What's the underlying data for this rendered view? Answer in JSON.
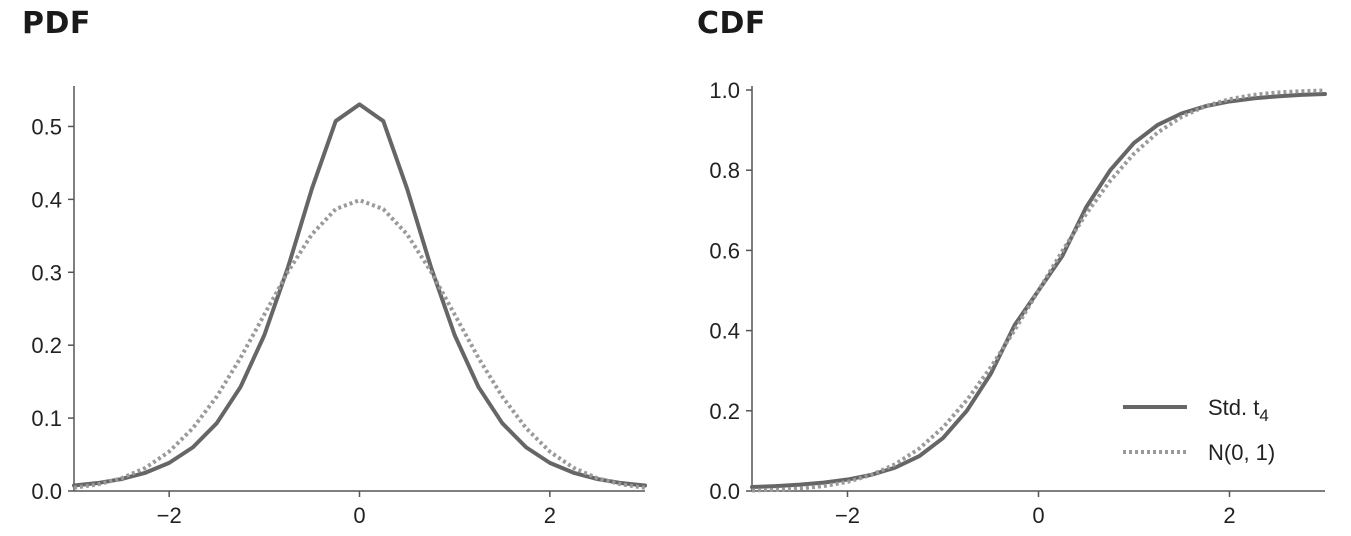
{
  "colors": {
    "line": "#666666",
    "dotted": "#9a9a9a",
    "axis": "#555555",
    "text": "#222222"
  },
  "chart_data": [
    {
      "type": "line",
      "title": "PDF",
      "xlabel": "",
      "ylabel": "",
      "xlim": [
        -3,
        3
      ],
      "ylim": [
        0,
        0.55
      ],
      "xticks": [
        -2,
        0,
        2
      ],
      "xtick_labels": [
        "−2",
        "0",
        "2"
      ],
      "yticks": [
        0.0,
        0.1,
        0.2,
        0.3,
        0.4,
        0.5
      ],
      "ytick_labels": [
        "0.0",
        "0.1",
        "0.2",
        "0.3",
        "0.4",
        "0.5"
      ],
      "grid": false,
      "x": [
        -3,
        -2.75,
        -2.5,
        -2.25,
        -2,
        -1.75,
        -1.5,
        -1.25,
        -1,
        -0.75,
        -0.5,
        -0.25,
        0,
        0.25,
        0.5,
        0.75,
        1,
        1.25,
        1.5,
        1.75,
        2,
        2.25,
        2.5,
        2.75,
        3
      ],
      "series": [
        {
          "style": "solid",
          "values": [
            0.0075,
            0.0109,
            0.0164,
            0.025,
            0.0386,
            0.06,
            0.093,
            0.1427,
            0.2138,
            0.3074,
            0.4146,
            0.5074,
            0.5303,
            0.5074,
            0.4146,
            0.3074,
            0.2138,
            0.1427,
            0.093,
            0.06,
            0.0386,
            0.025,
            0.0164,
            0.0109,
            0.0075
          ]
        },
        {
          "style": "dotted",
          "values": [
            0.0044,
            0.0091,
            0.0175,
            0.0317,
            0.054,
            0.0863,
            0.1295,
            0.1826,
            0.242,
            0.3011,
            0.3521,
            0.3867,
            0.3989,
            0.3867,
            0.3521,
            0.3011,
            0.242,
            0.1826,
            0.1295,
            0.0863,
            0.054,
            0.0317,
            0.0175,
            0.0091,
            0.0044
          ]
        }
      ]
    },
    {
      "type": "line",
      "title": "CDF",
      "xlabel": "",
      "ylabel": "",
      "xlim": [
        -3,
        3
      ],
      "ylim": [
        0,
        1.0
      ],
      "xticks": [
        -2,
        0,
        2
      ],
      "xtick_labels": [
        "−2",
        "0",
        "2"
      ],
      "yticks": [
        0.0,
        0.2,
        0.4,
        0.6,
        0.8,
        1.0
      ],
      "ytick_labels": [
        "0.0",
        "0.2",
        "0.4",
        "0.6",
        "0.8",
        "1.0"
      ],
      "grid": false,
      "legend_position": "bottom-right",
      "x": [
        -3,
        -2.75,
        -2.5,
        -2.25,
        -2,
        -1.75,
        -1.5,
        -1.25,
        -1,
        -0.75,
        -0.5,
        -0.25,
        0,
        0.25,
        0.5,
        0.75,
        1,
        1.25,
        1.5,
        1.75,
        2,
        2.25,
        2.5,
        2.75,
        3
      ],
      "series": [
        {
          "name": "Std. t",
          "name_sub": "4",
          "style": "solid",
          "values": [
            0.01,
            0.0123,
            0.0158,
            0.0208,
            0.0286,
            0.0403,
            0.0583,
            0.0867,
            0.1321,
            0.2002,
            0.2921,
            0.4136,
            0.5,
            0.5864,
            0.7079,
            0.7998,
            0.8679,
            0.9133,
            0.9417,
            0.9597,
            0.9714,
            0.9792,
            0.9842,
            0.9877,
            0.99
          ]
        },
        {
          "name": "N(0, 1)",
          "style": "dotted",
          "values": [
            0.0013,
            0.003,
            0.0062,
            0.0122,
            0.0228,
            0.0401,
            0.0668,
            0.1056,
            0.1587,
            0.2266,
            0.3085,
            0.4013,
            0.5,
            0.5987,
            0.6915,
            0.7734,
            0.8413,
            0.8944,
            0.9332,
            0.9599,
            0.9772,
            0.9878,
            0.9938,
            0.997,
            0.9987
          ]
        }
      ]
    }
  ]
}
